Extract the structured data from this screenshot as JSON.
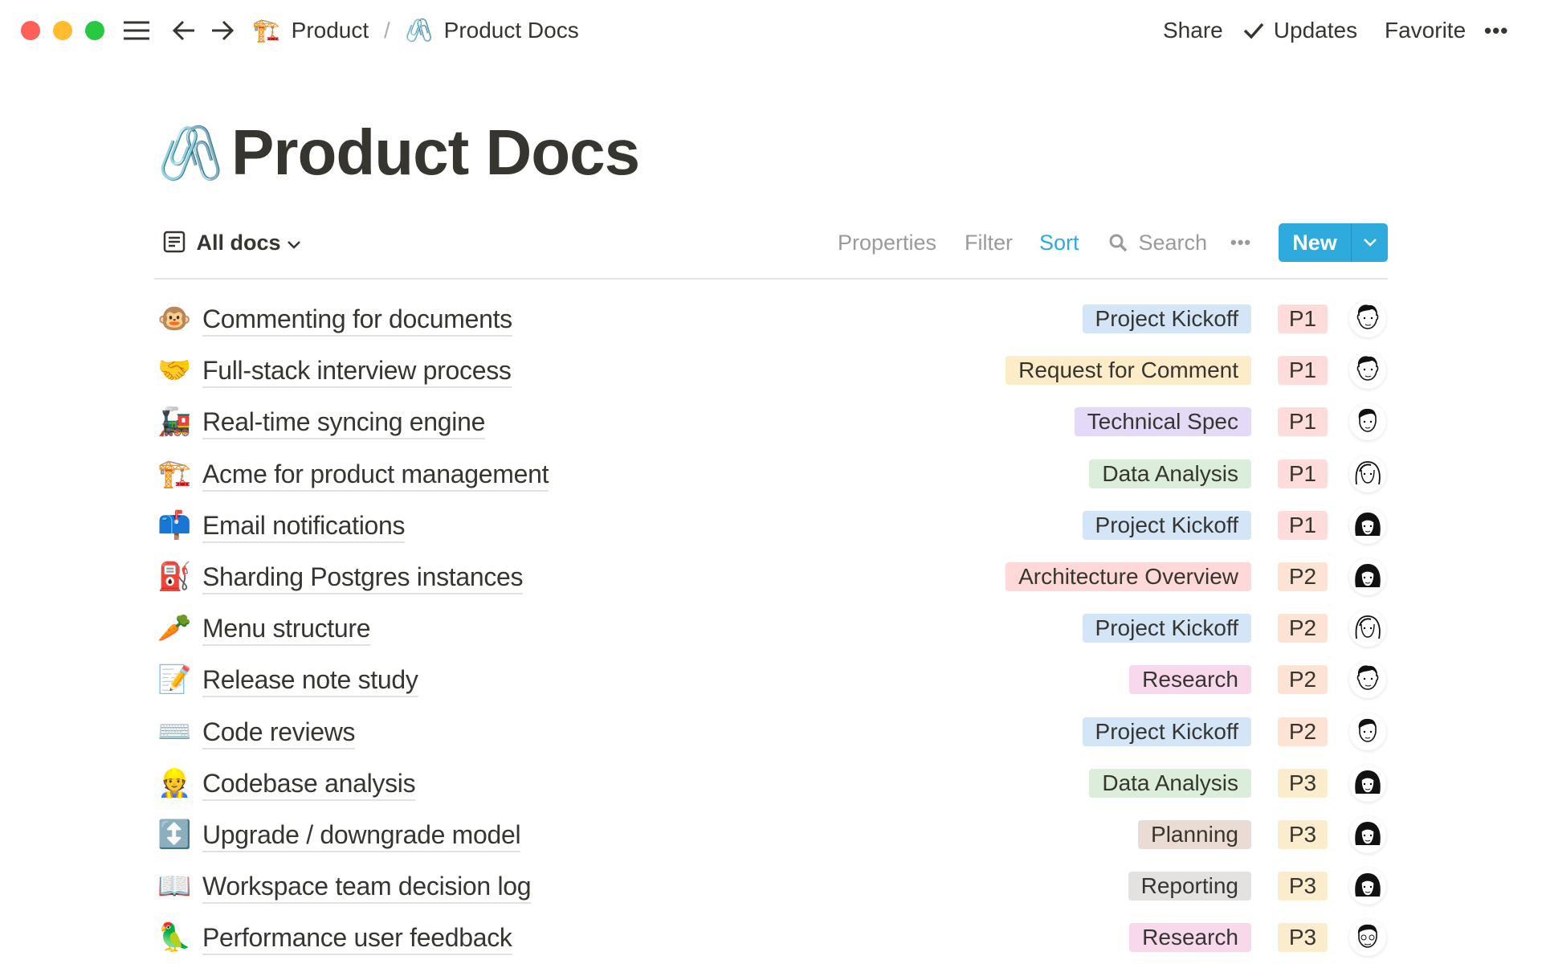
{
  "window": {
    "controls": [
      "close",
      "minimize",
      "maximize"
    ],
    "colors": {
      "close": "#fe5f57",
      "minimize": "#febc2e",
      "maximize": "#28c840"
    }
  },
  "breadcrumb": {
    "items": [
      {
        "icon": "construction-crane-icon",
        "emoji": "🏗️",
        "label": "Product"
      },
      {
        "icon": "paperclips-icon",
        "emoji": "🖇️",
        "label": "Product Docs"
      }
    ],
    "separator": "/"
  },
  "topbar": {
    "share": "Share",
    "updates": "Updates",
    "favorite": "Favorite",
    "more": "•••"
  },
  "page": {
    "icon": "🖇️",
    "title": "Product Docs"
  },
  "toolbar": {
    "view": "All docs",
    "properties": "Properties",
    "filter": "Filter",
    "sort": "Sort",
    "search": "Search",
    "more": "•••",
    "new": "New"
  },
  "colors": {
    "accent": "#2eaadc",
    "sort_active": "#2eaadc"
  },
  "rows": [
    {
      "emoji": "🐵",
      "title": "Commenting for documents",
      "tag": "Project Kickoff",
      "tag_color": "#d3e5f7",
      "priority": "P1",
      "avatar": "man-1"
    },
    {
      "emoji": "🤝",
      "title": "Full-stack interview process",
      "tag": "Request for Comment",
      "tag_color": "#fdecc8",
      "priority": "P1",
      "avatar": "man-1"
    },
    {
      "emoji": "🚂",
      "title": "Real-time syncing engine",
      "tag": "Technical Spec",
      "tag_color": "#e4d9f7",
      "priority": "P1",
      "avatar": "man-2"
    },
    {
      "emoji": "🏗️",
      "title": "Acme for product management",
      "tag": "Data Analysis",
      "tag_color": "#dbeddb",
      "priority": "P1",
      "avatar": "woman-1"
    },
    {
      "emoji": "📫",
      "title": "Email notifications",
      "tag": "Project Kickoff",
      "tag_color": "#d3e5f7",
      "priority": "P1",
      "avatar": "woman-2"
    },
    {
      "emoji": "⛽",
      "title": "Sharding Postgres instances",
      "tag": "Architecture Overview",
      "tag_color": "#ffd9d9",
      "priority": "P2",
      "avatar": "woman-2"
    },
    {
      "emoji": "🥕",
      "title": "Menu structure",
      "tag": "Project Kickoff",
      "tag_color": "#d3e5f7",
      "priority": "P2",
      "avatar": "woman-1"
    },
    {
      "emoji": "📝",
      "title": "Release note study",
      "tag": "Research",
      "tag_color": "#f8d9ec",
      "priority": "P2",
      "avatar": "man-1"
    },
    {
      "emoji": "⌨️",
      "title": "Code reviews",
      "tag": "Project Kickoff",
      "tag_color": "#d3e5f7",
      "priority": "P2",
      "avatar": "man-2"
    },
    {
      "emoji": "👷",
      "title": "Codebase analysis",
      "tag": "Data Analysis",
      "tag_color": "#dbeddb",
      "priority": "P3",
      "avatar": "woman-2"
    },
    {
      "emoji": "↕️",
      "title": "Upgrade / downgrade model",
      "tag": "Planning",
      "tag_color": "#eadcd4",
      "priority": "P3",
      "avatar": "woman-2"
    },
    {
      "emoji": "📖",
      "title": "Workspace team decision log",
      "tag": "Reporting",
      "tag_color": "#e3e2e0",
      "priority": "P3",
      "avatar": "woman-2"
    },
    {
      "emoji": "🦜",
      "title": "Performance user feedback",
      "tag": "Research",
      "tag_color": "#f8d9ec",
      "priority": "P3",
      "avatar": "man-3"
    }
  ],
  "priority_colors": {
    "P1": "#ffdcdc",
    "P2": "#fde3d4",
    "P3": "#fbeccd"
  }
}
